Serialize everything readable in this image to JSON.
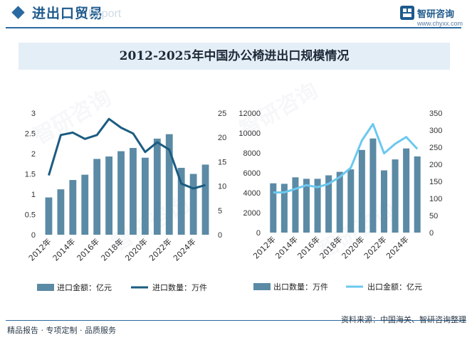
{
  "header": {
    "title": "进出口贸易",
    "watermark": "Export",
    "brand_name": "智研咨询",
    "brand_url": "www.chyxx.com"
  },
  "colors": {
    "bar": "#5b8aa5",
    "line_dark": "#1b5c80",
    "line_light": "#6cc8ef",
    "axis_text": "#333333",
    "accent": "#2b6aa0"
  },
  "footer": {
    "left": "精品报告 · 专项定制 · 品质服务",
    "source": "资料来源：中国海关、智研咨询整理"
  },
  "watermark_text": "智研咨询",
  "chart_data": [
    {
      "type": "bar+line",
      "title": "2012-2025年中国办公椅进出口规模情况",
      "categories": [
        "2012年",
        "2013年",
        "2014年",
        "2015年",
        "2016年",
        "2017年",
        "2018年",
        "2019年",
        "2020年",
        "2021年",
        "2022年",
        "2023年",
        "2024年",
        "2025年"
      ],
      "xtick_labels": [
        "2012年",
        "2014年",
        "2016年",
        "2018年",
        "2020年",
        "2022年",
        "2024年"
      ],
      "bar_series": {
        "name": "进口金额：亿元",
        "values": [
          0.92,
          1.12,
          1.35,
          1.48,
          1.87,
          1.93,
          2.06,
          2.14,
          1.9,
          2.37,
          2.48,
          1.65,
          1.5,
          1.73
        ]
      },
      "line_series": {
        "name": "进口数量：万件",
        "values": [
          12.2,
          20.5,
          21.0,
          19.7,
          20.5,
          23.8,
          22.0,
          20.8,
          17.0,
          19.0,
          17.5,
          10.5,
          9.5,
          10.2
        ]
      },
      "y_left": {
        "min": 0,
        "max": 3,
        "ticks": [
          "0",
          "0.5",
          "1",
          "1.5",
          "2",
          "2.5",
          "3"
        ]
      },
      "y_right": {
        "min": 0,
        "max": 25,
        "ticks": [
          "0",
          "5",
          "10",
          "15",
          "20",
          "25"
        ]
      }
    },
    {
      "type": "bar+line",
      "categories": [
        "2012年",
        "2013年",
        "2014年",
        "2015年",
        "2016年",
        "2017年",
        "2018年",
        "2019年",
        "2020年",
        "2021年",
        "2022年",
        "2023年",
        "2024年",
        "2025年"
      ],
      "xtick_labels": [
        "2012年",
        "2014年",
        "2016年",
        "2018年",
        "2020年",
        "2022年",
        "2024年"
      ],
      "bar_series": {
        "name": "出口数量：万件",
        "values": [
          4950,
          4900,
          5550,
          5400,
          5400,
          5750,
          6100,
          6350,
          8300,
          9450,
          6250,
          7350,
          8450,
          7650
        ]
      },
      "line_series": {
        "name": "出口金额：亿元",
        "values": [
          117,
          118,
          128,
          139,
          133,
          143,
          163,
          190,
          270,
          318,
          232,
          260,
          280,
          245
        ]
      },
      "y_left": {
        "min": 0,
        "max": 12000,
        "ticks": [
          "0",
          "2000",
          "4000",
          "6000",
          "8000",
          "10000",
          "12000"
        ]
      },
      "y_right": {
        "min": 0,
        "max": 350,
        "ticks": [
          "0",
          "50",
          "100",
          "150",
          "200",
          "250",
          "300",
          "350"
        ]
      }
    }
  ]
}
